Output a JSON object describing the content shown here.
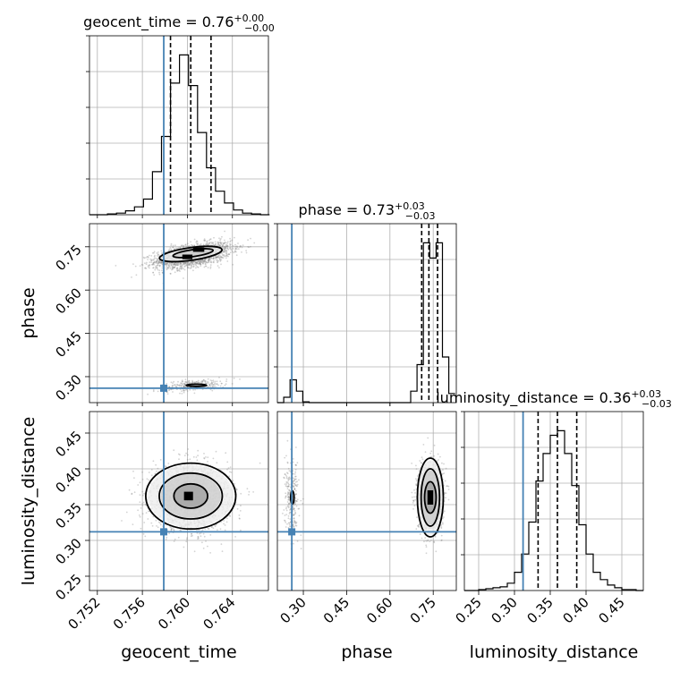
{
  "chart_data": {
    "type": "corner",
    "truth_color": "#4682b4",
    "parameters": [
      {
        "name": "geocent_time",
        "label": "geocent_time",
        "range": [
          0.7513,
          0.7672
        ],
        "ticks": [
          0.752,
          0.756,
          0.76,
          0.764
        ],
        "tick_labels": [
          "0.752",
          "0.756",
          "0.760",
          "0.764"
        ],
        "truth": 0.7579,
        "title_main": "geocent_time = 0.76",
        "title_sup": "+0.00",
        "title_sub": "−0.00",
        "quantiles": [
          0.7585,
          0.7603,
          0.7621
        ]
      },
      {
        "name": "phase",
        "label": "phase",
        "range": [
          0.21,
          0.83
        ],
        "ticks": [
          0.3,
          0.45,
          0.6,
          0.75
        ],
        "tick_labels": [
          "0.30",
          "0.45",
          "0.60",
          "0.75"
        ],
        "truth": 0.26,
        "title_main": "phase = 0.73",
        "title_sup": "+0.03",
        "title_sub": "−0.03",
        "quantiles": [
          0.71,
          0.735,
          0.765
        ]
      },
      {
        "name": "luminosity_distance",
        "label": "luminosity_distance",
        "range": [
          0.23,
          0.48
        ],
        "ticks": [
          0.25,
          0.3,
          0.35,
          0.4,
          0.45
        ],
        "tick_labels": [
          "0.25",
          "0.30",
          "0.35",
          "0.40",
          "0.45"
        ],
        "truth": 0.312,
        "title_main": "luminosity_distance = 0.36",
        "title_sup": "+0.03",
        "title_sub": "−0.03",
        "quantiles": [
          0.333,
          0.36,
          0.387
        ]
      }
    ],
    "histograms": [
      {
        "param": "geocent_time",
        "bins": [
          0.7513,
          0.7521,
          0.7529,
          0.7537,
          0.7545,
          0.7553,
          0.7561,
          0.7569,
          0.7577,
          0.7585,
          0.7593,
          0.7601,
          0.7609,
          0.7617,
          0.7625,
          0.7633,
          0.7641,
          0.7649,
          0.7657,
          0.7665,
          0.7673
        ],
        "counts": [
          0,
          0,
          1,
          2,
          5,
          10,
          20,
          55,
          100,
          168,
          204,
          165,
          105,
          60,
          30,
          15,
          6,
          2,
          1,
          0
        ]
      },
      {
        "param": "phase",
        "bins": [
          0.21,
          0.232,
          0.254,
          0.276,
          0.298,
          0.32,
          0.342,
          0.364,
          0.386,
          0.408,
          0.43,
          0.452,
          0.474,
          0.496,
          0.518,
          0.54,
          0.562,
          0.584,
          0.606,
          0.628,
          0.65,
          0.672,
          0.694,
          0.716,
          0.738,
          0.76,
          0.782,
          0.804,
          0.826
        ],
        "counts": [
          0,
          7,
          30,
          15,
          1,
          0,
          0,
          0,
          0,
          0,
          0,
          0,
          0,
          0,
          0,
          0,
          0,
          0,
          0,
          0,
          0,
          15,
          50,
          210,
          190,
          210,
          60,
          12
        ]
      },
      {
        "param": "luminosity_distance",
        "bins": [
          0.23,
          0.24,
          0.25,
          0.26,
          0.27,
          0.28,
          0.29,
          0.3,
          0.31,
          0.32,
          0.33,
          0.34,
          0.35,
          0.36,
          0.37,
          0.38,
          0.39,
          0.4,
          0.41,
          0.42,
          0.43,
          0.44,
          0.45,
          0.46,
          0.47,
          0.48
        ],
        "counts": [
          0,
          0,
          1,
          2,
          3,
          4,
          8,
          20,
          40,
          75,
          120,
          150,
          170,
          175,
          150,
          115,
          72,
          40,
          20,
          12,
          6,
          3,
          1,
          1,
          0
        ]
      }
    ],
    "scatter": [
      {
        "x": "geocent_time",
        "y": "phase",
        "clusters": [
          {
            "cx": 0.7605,
            "cy": 0.72,
            "sx": 0.0017,
            "sy": 0.022,
            "corr": 0.5,
            "weight": 0.88
          },
          {
            "cx": 0.7605,
            "cy": 0.27,
            "sx": 0.0015,
            "sy": 0.011,
            "corr": 0.5,
            "weight": 0.12
          }
        ],
        "contours": [
          {
            "cx": 0.7603,
            "cy": 0.725,
            "rx": 0.0028,
            "ry": 0.022,
            "tilt": -8
          },
          {
            "cx": 0.7605,
            "cy": 0.728,
            "rx": 0.0018,
            "ry": 0.012,
            "tilt": -8
          },
          {
            "cx": 0.7608,
            "cy": 0.27,
            "rx": 0.0009,
            "ry": 0.004,
            "tilt": 0
          }
        ],
        "cores": [
          {
            "x": 0.76,
            "y": 0.715,
            "w": 0.0009,
            "h": 0.016
          },
          {
            "x": 0.761,
            "y": 0.74,
            "w": 0.001,
            "h": 0.015
          }
        ]
      },
      {
        "x": "geocent_time",
        "y": "luminosity_distance",
        "clusters": [
          {
            "cx": 0.7603,
            "cy": 0.36,
            "sx": 0.0017,
            "sy": 0.022,
            "corr": 0.0,
            "weight": 1.0
          }
        ],
        "contours": [
          {
            "cx": 0.7603,
            "cy": 0.362,
            "rx": 0.004,
            "ry": 0.046,
            "tilt": 0
          },
          {
            "cx": 0.7603,
            "cy": 0.362,
            "rx": 0.0028,
            "ry": 0.032,
            "tilt": 0
          },
          {
            "cx": 0.7603,
            "cy": 0.362,
            "rx": 0.0015,
            "ry": 0.017,
            "tilt": 0
          }
        ],
        "cores": [
          {
            "x": 0.7601,
            "y": 0.362,
            "w": 0.0008,
            "h": 0.012
          }
        ]
      },
      {
        "x": "phase",
        "y": "luminosity_distance",
        "clusters": [
          {
            "cx": 0.74,
            "cy": 0.36,
            "sx": 0.02,
            "sy": 0.022,
            "corr": 0.0,
            "weight": 0.88
          },
          {
            "cx": 0.26,
            "cy": 0.36,
            "sx": 0.012,
            "sy": 0.025,
            "corr": 0.0,
            "weight": 0.12
          }
        ],
        "contours": [
          {
            "cx": 0.74,
            "cy": 0.36,
            "rx": 0.045,
            "ry": 0.055,
            "tilt": 0
          },
          {
            "cx": 0.74,
            "cy": 0.36,
            "rx": 0.032,
            "ry": 0.04,
            "tilt": 0
          },
          {
            "cx": 0.74,
            "cy": 0.36,
            "rx": 0.02,
            "ry": 0.022,
            "tilt": 0
          },
          {
            "cx": 0.262,
            "cy": 0.36,
            "rx": 0.006,
            "ry": 0.009,
            "tilt": 0
          }
        ],
        "cores": [
          {
            "x": 0.74,
            "y": 0.36,
            "w": 0.02,
            "h": 0.02
          }
        ]
      }
    ]
  }
}
